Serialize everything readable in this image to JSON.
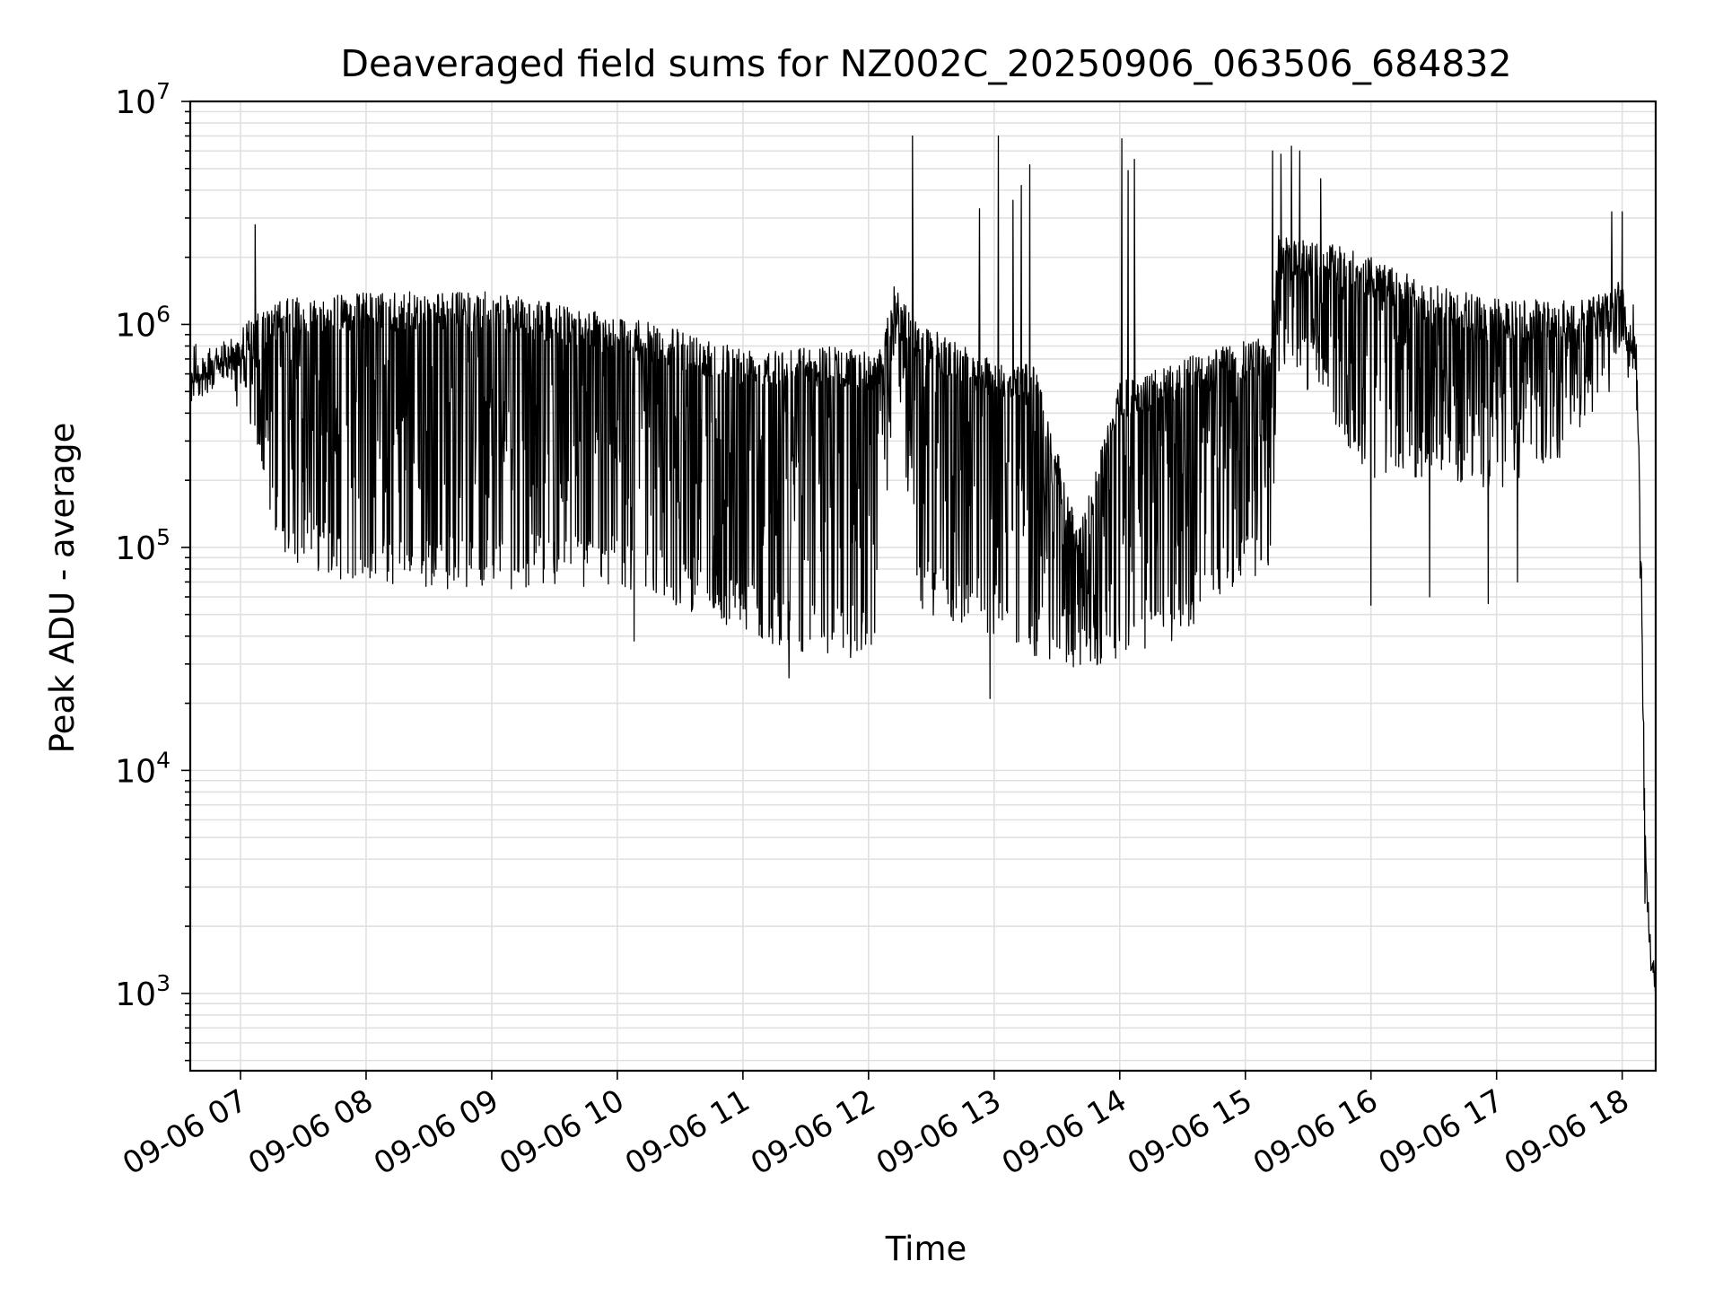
{
  "chart_data": {
    "type": "line",
    "title": "Deaveraged field sums for NZ002C_20250906_063506_684832",
    "xlabel": "Time",
    "ylabel": "Peak ADU - average",
    "yscale": "log",
    "ylim": [
      450,
      10000000
    ],
    "xlim": [
      "2025-09-06 06:36",
      "2025-09-06 18:16"
    ],
    "grid": true,
    "legend": "none",
    "line_color": "#000000",
    "grid_color": "#e0e0e0",
    "x_ticks": [
      {
        "t": "2025-09-06 07:00",
        "label": "09-06 07"
      },
      {
        "t": "2025-09-06 08:00",
        "label": "09-06 08"
      },
      {
        "t": "2025-09-06 09:00",
        "label": "09-06 09"
      },
      {
        "t": "2025-09-06 10:00",
        "label": "09-06 10"
      },
      {
        "t": "2025-09-06 11:00",
        "label": "09-06 11"
      },
      {
        "t": "2025-09-06 12:00",
        "label": "09-06 12"
      },
      {
        "t": "2025-09-06 13:00",
        "label": "09-06 13"
      },
      {
        "t": "2025-09-06 14:00",
        "label": "09-06 14"
      },
      {
        "t": "2025-09-06 15:00",
        "label": "09-06 15"
      },
      {
        "t": "2025-09-06 16:00",
        "label": "09-06 16"
      },
      {
        "t": "2025-09-06 17:00",
        "label": "09-06 17"
      },
      {
        "t": "2025-09-06 18:00",
        "label": "09-06 18"
      }
    ],
    "y_ticks": [
      {
        "value": 1000,
        "base": "10",
        "exp": "3"
      },
      {
        "value": 10000,
        "base": "10",
        "exp": "4"
      },
      {
        "value": 100000,
        "base": "10",
        "exp": "5"
      },
      {
        "value": 1000000,
        "base": "10",
        "exp": "6"
      },
      {
        "value": 10000000,
        "base": "10",
        "exp": "7"
      }
    ],
    "series": [
      {
        "envelope": [
          {
            "t": "2025-09-06 06:36",
            "high": 650000,
            "low": 480000
          },
          {
            "t": "2025-09-06 06:50",
            "high": 800000,
            "low": 550000
          },
          {
            "t": "2025-09-06 07:00",
            "high": 1000000,
            "low": 400000
          },
          {
            "t": "2025-09-06 07:20",
            "high": 1300000,
            "low": 90000
          },
          {
            "t": "2025-09-06 08:00",
            "high": 1400000,
            "low": 65000
          },
          {
            "t": "2025-09-06 09:00",
            "high": 1400000,
            "low": 65000
          },
          {
            "t": "2025-09-06 10:00",
            "high": 1100000,
            "low": 65000
          },
          {
            "t": "2025-09-06 10:40",
            "high": 900000,
            "low": 50000
          },
          {
            "t": "2025-09-06 11:00",
            "high": 800000,
            "low": 40000
          },
          {
            "t": "2025-09-06 11:40",
            "high": 800000,
            "low": 32000
          },
          {
            "t": "2025-09-06 12:05",
            "high": 750000,
            "low": 30000
          },
          {
            "t": "2025-09-06 12:12",
            "high": 1500000,
            "low": 500000
          },
          {
            "t": "2025-09-06 12:25",
            "high": 1000000,
            "low": 50000
          },
          {
            "t": "2025-09-06 13:00",
            "high": 700000,
            "low": 40000
          },
          {
            "t": "2025-09-06 13:20",
            "high": 650000,
            "low": 32000
          },
          {
            "t": "2025-09-06 13:40",
            "high": 120000,
            "low": 28000
          },
          {
            "t": "2025-09-06 14:00",
            "high": 550000,
            "low": 30000
          },
          {
            "t": "2025-09-06 14:30",
            "high": 700000,
            "low": 40000
          },
          {
            "t": "2025-09-06 15:00",
            "high": 850000,
            "low": 70000
          },
          {
            "t": "2025-09-06 15:13",
            "high": 900000,
            "low": 80000
          },
          {
            "t": "2025-09-06 15:15",
            "high": 2500000,
            "low": 600000
          },
          {
            "t": "2025-09-06 15:30",
            "high": 2500000,
            "low": 500000
          },
          {
            "t": "2025-09-06 16:00",
            "high": 2000000,
            "low": 200000
          },
          {
            "t": "2025-09-06 16:30",
            "high": 1500000,
            "low": 200000
          },
          {
            "t": "2025-09-06 17:00",
            "high": 1300000,
            "low": 180000
          },
          {
            "t": "2025-09-06 17:30",
            "high": 1300000,
            "low": 250000
          },
          {
            "t": "2025-09-06 17:55",
            "high": 1400000,
            "low": 450000
          },
          {
            "t": "2025-09-06 18:00",
            "high": 1700000,
            "low": 600000
          },
          {
            "t": "2025-09-06 18:03",
            "high": 800000,
            "low": 700000
          },
          {
            "t": "2025-09-06 18:06",
            "high": 1000000,
            "low": 700000
          },
          {
            "t": "2025-09-06 18:08",
            "high": 350000,
            "low": 250000
          },
          {
            "t": "2025-09-06 18:09",
            "high": 120000,
            "low": 28000
          },
          {
            "t": "2025-09-06 18:11",
            "high": 6000,
            "low": 2000
          },
          {
            "t": "2025-09-06 18:12",
            "high": 3000,
            "low": 1500
          },
          {
            "t": "2025-09-06 18:14",
            "high": 1700,
            "low": 1200
          },
          {
            "t": "2025-09-06 18:16",
            "high": 1300,
            "low": 700
          }
        ],
        "spikes": [
          {
            "t": "2025-09-06 07:07",
            "y": 2800000
          },
          {
            "t": "2025-09-06 12:21",
            "y": 7000000
          },
          {
            "t": "2025-09-06 12:53",
            "y": 3300000
          },
          {
            "t": "2025-09-06 12:58",
            "y": 3400000
          },
          {
            "t": "2025-09-06 13:02",
            "y": 7000000
          },
          {
            "t": "2025-09-06 13:09",
            "y": 3600000
          },
          {
            "t": "2025-09-06 13:13",
            "y": 4200000
          },
          {
            "t": "2025-09-06 13:17",
            "y": 5200000
          },
          {
            "t": "2025-09-06 14:01",
            "y": 6800000
          },
          {
            "t": "2025-09-06 14:04",
            "y": 4900000
          },
          {
            "t": "2025-09-06 14:07",
            "y": 5500000
          },
          {
            "t": "2025-09-06 15:13",
            "y": 6000000
          },
          {
            "t": "2025-09-06 15:17",
            "y": 5800000
          },
          {
            "t": "2025-09-06 15:22",
            "y": 6300000
          },
          {
            "t": "2025-09-06 15:26",
            "y": 6000000
          },
          {
            "t": "2025-09-06 15:36",
            "y": 4500000
          },
          {
            "t": "2025-09-06 16:00",
            "y": 3800000
          },
          {
            "t": "2025-09-06 17:55",
            "y": 3200000
          },
          {
            "t": "2025-09-06 18:00",
            "y": 3200000
          }
        ],
        "dips": [
          {
            "t": "2025-09-06 10:08",
            "y": 38000
          },
          {
            "t": "2025-09-06 11:22",
            "y": 26000
          },
          {
            "t": "2025-09-06 12:58",
            "y": 21000
          },
          {
            "t": "2025-09-06 16:00",
            "y": 55000
          },
          {
            "t": "2025-09-06 16:28",
            "y": 60000
          },
          {
            "t": "2025-09-06 16:56",
            "y": 56000
          },
          {
            "t": "2025-09-06 17:10",
            "y": 70000
          }
        ]
      }
    ]
  }
}
